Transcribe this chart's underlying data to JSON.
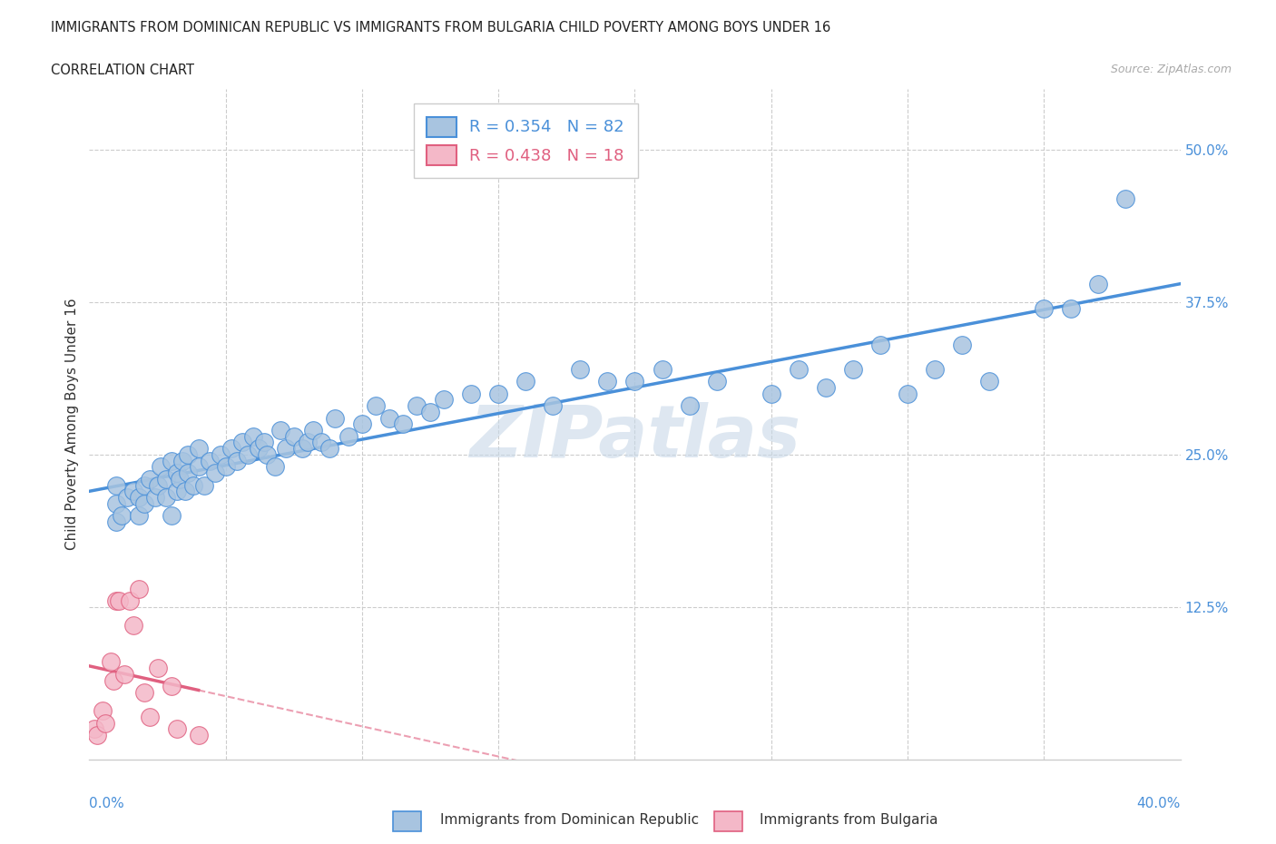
{
  "title": "IMMIGRANTS FROM DOMINICAN REPUBLIC VS IMMIGRANTS FROM BULGARIA CHILD POVERTY AMONG BOYS UNDER 16",
  "subtitle": "CORRELATION CHART",
  "source": "Source: ZipAtlas.com",
  "ylabel": "Child Poverty Among Boys Under 16",
  "ytick_labels": [
    "12.5%",
    "25.0%",
    "37.5%",
    "50.0%"
  ],
  "ytick_values": [
    0.125,
    0.25,
    0.375,
    0.5
  ],
  "xmin": 0.0,
  "xmax": 0.4,
  "ymin": 0.0,
  "ymax": 0.55,
  "r_blue": 0.354,
  "n_blue": 82,
  "r_pink": 0.438,
  "n_pink": 18,
  "blue_color": "#a8c4e0",
  "blue_line_color": "#4a90d9",
  "pink_color": "#f4b8c8",
  "pink_line_color": "#e06080",
  "legend_label_blue": "Immigrants from Dominican Republic",
  "legend_label_pink": "Immigrants from Bulgaria",
  "blue_scatter_x": [
    0.01,
    0.01,
    0.01,
    0.012,
    0.014,
    0.016,
    0.018,
    0.018,
    0.02,
    0.02,
    0.022,
    0.024,
    0.025,
    0.026,
    0.028,
    0.028,
    0.03,
    0.03,
    0.032,
    0.032,
    0.033,
    0.034,
    0.035,
    0.036,
    0.036,
    0.038,
    0.04,
    0.04,
    0.042,
    0.044,
    0.046,
    0.048,
    0.05,
    0.052,
    0.054,
    0.056,
    0.058,
    0.06,
    0.062,
    0.064,
    0.065,
    0.068,
    0.07,
    0.072,
    0.075,
    0.078,
    0.08,
    0.082,
    0.085,
    0.088,
    0.09,
    0.095,
    0.1,
    0.105,
    0.11,
    0.115,
    0.12,
    0.125,
    0.13,
    0.14,
    0.15,
    0.16,
    0.17,
    0.18,
    0.19,
    0.2,
    0.21,
    0.22,
    0.23,
    0.25,
    0.26,
    0.27,
    0.28,
    0.29,
    0.3,
    0.31,
    0.32,
    0.33,
    0.35,
    0.36,
    0.37,
    0.38
  ],
  "blue_scatter_y": [
    0.195,
    0.21,
    0.225,
    0.2,
    0.215,
    0.22,
    0.215,
    0.2,
    0.21,
    0.225,
    0.23,
    0.215,
    0.225,
    0.24,
    0.215,
    0.23,
    0.2,
    0.245,
    0.22,
    0.235,
    0.23,
    0.245,
    0.22,
    0.235,
    0.25,
    0.225,
    0.24,
    0.255,
    0.225,
    0.245,
    0.235,
    0.25,
    0.24,
    0.255,
    0.245,
    0.26,
    0.25,
    0.265,
    0.255,
    0.26,
    0.25,
    0.24,
    0.27,
    0.255,
    0.265,
    0.255,
    0.26,
    0.27,
    0.26,
    0.255,
    0.28,
    0.265,
    0.275,
    0.29,
    0.28,
    0.275,
    0.29,
    0.285,
    0.295,
    0.3,
    0.3,
    0.31,
    0.29,
    0.32,
    0.31,
    0.31,
    0.32,
    0.29,
    0.31,
    0.3,
    0.32,
    0.305,
    0.32,
    0.34,
    0.3,
    0.32,
    0.34,
    0.31,
    0.37,
    0.37,
    0.39,
    0.46
  ],
  "pink_scatter_x": [
    0.002,
    0.003,
    0.005,
    0.006,
    0.008,
    0.009,
    0.01,
    0.011,
    0.013,
    0.015,
    0.016,
    0.018,
    0.02,
    0.022,
    0.025,
    0.03,
    0.032,
    0.04
  ],
  "pink_scatter_y": [
    0.025,
    0.02,
    0.04,
    0.03,
    0.08,
    0.065,
    0.13,
    0.13,
    0.07,
    0.13,
    0.11,
    0.14,
    0.055,
    0.035,
    0.075,
    0.06,
    0.025,
    0.02
  ],
  "watermark": "ZIPatlas",
  "watermark_color": "#c8d8e8"
}
